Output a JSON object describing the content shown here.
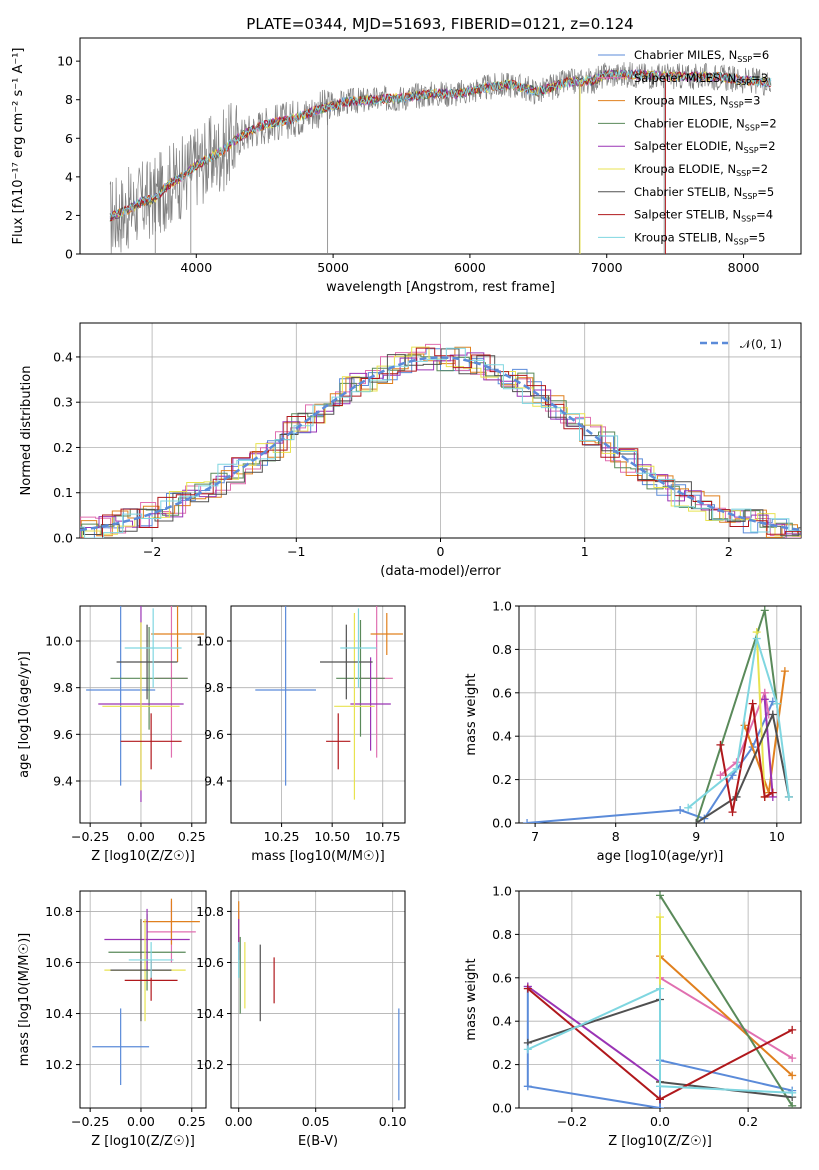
{
  "figure_title": "PLATE=0344, MJD=51693, FIBERID=0121, z=0.124",
  "colors": {
    "data": "#808080",
    "gaussian": "#5b8bd9"
  },
  "chart_data": [
    {
      "id": "spectrum",
      "type": "line",
      "xlabel": "wavelength [Angstrom, rest frame]",
      "ylabel": "Flux [fλ10⁻¹⁷ erg cm⁻² s⁻¹ A⁻¹]",
      "xlim": [
        3150,
        8420
      ],
      "ylim": [
        0,
        11.2
      ],
      "xticks": [
        4000,
        5000,
        6000,
        7000,
        8000
      ],
      "yticks": [
        0,
        2,
        4,
        6,
        8,
        10
      ],
      "grid": false,
      "legend_position": "top-right",
      "anchors": [
        [
          3370,
          1.9
        ],
        [
          3500,
          2.3
        ],
        [
          3600,
          2.7
        ],
        [
          3700,
          2.9
        ],
        [
          3800,
          3.6
        ],
        [
          3900,
          4.0
        ],
        [
          4000,
          4.6
        ],
        [
          4100,
          5.0
        ],
        [
          4200,
          5.4
        ],
        [
          4300,
          6.0
        ],
        [
          4400,
          6.4
        ],
        [
          4500,
          6.7
        ],
        [
          4700,
          7.0
        ],
        [
          4900,
          7.5
        ],
        [
          5100,
          7.9
        ],
        [
          5300,
          8.0
        ],
        [
          5500,
          8.1
        ],
        [
          5700,
          8.3
        ],
        [
          5900,
          8.3
        ],
        [
          6100,
          8.6
        ],
        [
          6300,
          8.8
        ],
        [
          6500,
          8.4
        ],
        [
          6700,
          8.9
        ],
        [
          6900,
          9.0
        ],
        [
          7000,
          9.3
        ],
        [
          7200,
          9.3
        ],
        [
          7500,
          9.2
        ],
        [
          7800,
          9.2
        ],
        [
          8000,
          9.0
        ],
        [
          8200,
          8.9
        ]
      ],
      "series": [
        {
          "name": "Chabrier MILES, N_SSP=6",
          "label_main": "Chabrier MILES, N",
          "label_sub": "SSP",
          "label_tail": "=6",
          "color": "#5b8bd9"
        },
        {
          "name": "Salpeter MILES, N_SSP=3",
          "label_main": "Salpeter MILES, N",
          "label_sub": "SSP",
          "label_tail": "=3",
          "color": "#e06fb0"
        },
        {
          "name": "Kroupa MILES, N_SSP=3",
          "label_main": "Kroupa MILES, N",
          "label_sub": "SSP",
          "label_tail": "=3",
          "color": "#e0801e"
        },
        {
          "name": "Chabrier ELODIE, N_SSP=2",
          "label_main": "Chabrier ELODIE, N",
          "label_sub": "SSP",
          "label_tail": "=2",
          "color": "#5a8a5a"
        },
        {
          "name": "Salpeter ELODIE, N_SSP=2",
          "label_main": "Salpeter ELODIE, N",
          "label_sub": "SSP",
          "label_tail": "=2",
          "color": "#9a34b5"
        },
        {
          "name": "Kroupa ELODIE, N_SSP=2",
          "label_main": "Kroupa ELODIE, N",
          "label_sub": "SSP",
          "label_tail": "=2",
          "color": "#e8e350"
        },
        {
          "name": "Chabrier STELIB, N_SSP=5",
          "label_main": "Chabrier STELIB, N",
          "label_sub": "SSP",
          "label_tail": "=5",
          "color": "#505050"
        },
        {
          "name": "Salpeter STELIB, N_SSP=4",
          "label_main": "Salpeter STELIB, N",
          "label_sub": "SSP",
          "label_tail": "=4",
          "color": "#b0181c"
        },
        {
          "name": "Kroupa STELIB, N_SSP=5",
          "label_main": "Kroupa STELIB, N",
          "label_sub": "SSP",
          "label_tail": "=5",
          "color": "#7fd6e0"
        }
      ]
    },
    {
      "id": "residuals",
      "type": "line",
      "xlabel": "(data-model)/error",
      "ylabel": "Normed distribution",
      "xlim": [
        -2.5,
        2.5
      ],
      "ylim": [
        0,
        0.475
      ],
      "xticks": [
        -2,
        -1,
        0,
        1,
        2
      ],
      "yticks": [
        0.0,
        0.1,
        0.2,
        0.3,
        0.4
      ],
      "grid": true,
      "legend_position": "top-right",
      "legend_label": "𝒩(0, 1)",
      "gaussian": {
        "mean": 0,
        "sigma": 1
      }
    },
    {
      "id": "age-vs-Z",
      "type": "scatter",
      "xlabel": "Z [log10(Z/Z☉)]",
      "ylabel": "age [log10(age/yr)]",
      "xlim": [
        -0.3,
        0.32
      ],
      "ylim": [
        9.22,
        10.15
      ],
      "xticks": [
        -0.25,
        0.0,
        0.25
      ],
      "yticks": [
        9.4,
        9.6,
        9.8,
        10.0
      ],
      "grid": true,
      "points": [
        {
          "x": -0.1,
          "xerr": 0.17,
          "y": 9.79,
          "yerr": 0.41,
          "color": "#5b8bd9"
        },
        {
          "x": 0.15,
          "xerr": 0.08,
          "y": 9.84,
          "yerr": 0.34,
          "color": "#e06fb0"
        },
        {
          "x": 0.18,
          "xerr": 0.13,
          "y": 10.03,
          "yerr": 0.12,
          "color": "#e0801e"
        },
        {
          "x": 0.04,
          "xerr": 0.19,
          "y": 9.84,
          "yerr": 0.22,
          "color": "#5a8a5a"
        },
        {
          "x": 0.0,
          "xerr": 0.21,
          "y": 9.73,
          "yerr": 0.42,
          "color": "#9a34b5"
        },
        {
          "x": 0.0,
          "xerr": 0.19,
          "y": 9.72,
          "yerr": 0.36,
          "color": "#e8e350"
        },
        {
          "x": 0.03,
          "xerr": 0.15,
          "y": 9.91,
          "yerr": 0.16,
          "color": "#505050"
        },
        {
          "x": 0.05,
          "xerr": 0.15,
          "y": 9.57,
          "yerr": 0.12,
          "color": "#b0181c"
        },
        {
          "x": 0.06,
          "xerr": 0.14,
          "y": 9.97,
          "yerr": 0.17,
          "color": "#7fd6e0"
        }
      ]
    },
    {
      "id": "age-vs-mass",
      "type": "scatter",
      "xlabel": "mass [log10(M/M☉)]",
      "ylabel": "",
      "xlim": [
        10.0,
        10.86
      ],
      "ylim": [
        9.22,
        10.15
      ],
      "xticks": [
        10.25,
        10.5,
        10.75
      ],
      "yticks": [
        9.4,
        9.6,
        9.8,
        10.0
      ],
      "grid": true,
      "points": [
        {
          "x": 10.27,
          "xerr": 0.15,
          "y": 9.79,
          "yerr": 0.41,
          "color": "#5b8bd9"
        },
        {
          "x": 10.72,
          "xerr": 0.08,
          "y": 9.84,
          "yerr": 0.34,
          "color": "#e06fb0"
        },
        {
          "x": 10.77,
          "xerr": 0.08,
          "y": 10.03,
          "yerr": 0.09,
          "color": "#e0801e"
        },
        {
          "x": 10.64,
          "xerr": 0.12,
          "y": 9.84,
          "yerr": 0.25,
          "color": "#5a8a5a"
        },
        {
          "x": 10.69,
          "xerr": 0.1,
          "y": 9.73,
          "yerr": 0.2,
          "color": "#9a34b5"
        },
        {
          "x": 10.61,
          "xerr": 0.1,
          "y": 9.72,
          "yerr": 0.4,
          "color": "#e8e350"
        },
        {
          "x": 10.57,
          "xerr": 0.13,
          "y": 9.91,
          "yerr": 0.16,
          "color": "#505050"
        },
        {
          "x": 10.53,
          "xerr": 0.06,
          "y": 9.57,
          "yerr": 0.12,
          "color": "#b0181c"
        },
        {
          "x": 10.63,
          "xerr": 0.09,
          "y": 9.97,
          "yerr": 0.17,
          "color": "#7fd6e0"
        }
      ]
    },
    {
      "id": "weight-vs-age",
      "type": "line",
      "xlabel": "age [log10(age/yr)]",
      "ylabel": "mass weight",
      "xlim": [
        6.8,
        10.3
      ],
      "ylim": [
        0.0,
        1.0
      ],
      "xticks": [
        7,
        8,
        9,
        10
      ],
      "yticks": [
        0.0,
        0.2,
        0.4,
        0.6,
        0.8,
        1.0
      ],
      "grid": true,
      "series": [
        {
          "color": "#5b8bd9",
          "points": [
            [
              6.9,
              0.0
            ],
            [
              8.8,
              0.06
            ],
            [
              9.1,
              0.02
            ],
            [
              9.45,
              0.22
            ],
            [
              9.7,
              0.35
            ],
            [
              9.95,
              0.56
            ]
          ]
        },
        {
          "color": "#e06fb0",
          "points": [
            [
              9.3,
              0.22
            ],
            [
              9.5,
              0.28
            ],
            [
              9.85,
              0.6
            ],
            [
              9.9,
              0.5
            ]
          ]
        },
        {
          "color": "#e0801e",
          "points": [
            [
              9.6,
              0.45
            ],
            [
              9.9,
              0.14
            ],
            [
              10.1,
              0.7
            ]
          ]
        },
        {
          "color": "#5a8a5a",
          "points": [
            [
              9.0,
              0.0
            ],
            [
              9.85,
              0.98
            ],
            [
              10.0,
              0.55
            ]
          ]
        },
        {
          "color": "#9a34b5",
          "points": [
            [
              9.85,
              0.57
            ],
            [
              9.95,
              0.12
            ]
          ]
        },
        {
          "color": "#e8e350",
          "points": [
            [
              9.75,
              0.88
            ],
            [
              9.85,
              0.12
            ]
          ]
        },
        {
          "color": "#505050",
          "points": [
            [
              9.0,
              0.0
            ],
            [
              9.5,
              0.12
            ],
            [
              9.95,
              0.5
            ],
            [
              10.15,
              0.12
            ]
          ]
        },
        {
          "color": "#b0181c",
          "points": [
            [
              9.3,
              0.36
            ],
            [
              9.45,
              0.05
            ],
            [
              9.7,
              0.55
            ],
            [
              9.85,
              0.12
            ],
            [
              9.95,
              0.14
            ]
          ]
        },
        {
          "color": "#7fd6e0",
          "points": [
            [
              8.9,
              0.07
            ],
            [
              9.5,
              0.25
            ],
            [
              9.75,
              0.85
            ],
            [
              10.0,
              0.55
            ],
            [
              10.15,
              0.12
            ]
          ]
        }
      ]
    },
    {
      "id": "mass-vs-Z",
      "type": "scatter",
      "xlabel": "Z [log10(Z/Z☉)]",
      "ylabel": "mass [log10(M/M☉)]",
      "xlim": [
        -0.3,
        0.32
      ],
      "ylim": [
        10.03,
        10.88
      ],
      "xticks": [
        -0.25,
        0.0,
        0.25
      ],
      "yticks": [
        10.2,
        10.4,
        10.6,
        10.8
      ],
      "grid": true,
      "points": [
        {
          "x": -0.1,
          "xerr": 0.14,
          "y": 10.27,
          "yerr": 0.15,
          "color": "#5b8bd9"
        },
        {
          "x": 0.15,
          "xerr": 0.12,
          "y": 10.72,
          "yerr": 0.12,
          "color": "#e06fb0"
        },
        {
          "x": 0.15,
          "xerr": 0.14,
          "y": 10.76,
          "yerr": 0.09,
          "color": "#e0801e"
        },
        {
          "x": 0.03,
          "xerr": 0.19,
          "y": 10.64,
          "yerr": 0.15,
          "color": "#5a8a5a"
        },
        {
          "x": 0.03,
          "xerr": 0.21,
          "y": 10.69,
          "yerr": 0.12,
          "color": "#9a34b5"
        },
        {
          "x": 0.02,
          "xerr": 0.2,
          "y": 10.57,
          "yerr": 0.2,
          "color": "#e8e350"
        },
        {
          "x": 0.0,
          "xerr": 0.15,
          "y": 10.57,
          "yerr": 0.2,
          "color": "#505050"
        },
        {
          "x": 0.05,
          "xerr": 0.13,
          "y": 10.53,
          "yerr": 0.08,
          "color": "#b0181c"
        },
        {
          "x": 0.05,
          "xerr": 0.11,
          "y": 10.61,
          "yerr": 0.07,
          "color": "#7fd6e0"
        }
      ]
    },
    {
      "id": "mass-vs-EBV",
      "type": "scatter",
      "xlabel": "E(B-V)",
      "ylabel": "",
      "xlim": [
        -0.005,
        0.108
      ],
      "ylim": [
        10.03,
        10.88
      ],
      "xticks": [
        0.0,
        0.05,
        0.1
      ],
      "yticks": [
        10.2,
        10.4,
        10.6,
        10.8
      ],
      "grid": true,
      "points": [
        {
          "x": 0.104,
          "y": 10.24,
          "yerr": 0.18,
          "color": "#5b8bd9"
        },
        {
          "x": 0.0,
          "y": 10.72,
          "yerr": 0.08,
          "color": "#e06fb0"
        },
        {
          "x": 0.0,
          "y": 10.76,
          "yerr": 0.08,
          "color": "#e0801e"
        },
        {
          "x": 0.001,
          "y": 10.55,
          "yerr": 0.15,
          "color": "#5a8a5a"
        },
        {
          "x": 0.0,
          "y": 10.69,
          "yerr": 0.08,
          "color": "#9a34b5"
        },
        {
          "x": 0.004,
          "y": 10.55,
          "yerr": 0.13,
          "color": "#e8e350"
        },
        {
          "x": 0.014,
          "y": 10.52,
          "yerr": 0.15,
          "color": "#505050"
        },
        {
          "x": 0.023,
          "y": 10.53,
          "yerr": 0.09,
          "color": "#b0181c"
        },
        {
          "x": 0.0,
          "y": 10.61,
          "yerr": 0.07,
          "color": "#7fd6e0"
        }
      ]
    },
    {
      "id": "weight-vs-Z",
      "type": "line",
      "xlabel": "Z [log10(Z/Z☉)]",
      "ylabel": "mass weight",
      "xlim": [
        -0.32,
        0.32
      ],
      "ylim": [
        0.0,
        1.0
      ],
      "xticks": [
        -0.2,
        0.0,
        0.2
      ],
      "yticks": [
        0.0,
        0.2,
        0.4,
        0.6,
        0.8,
        1.0
      ],
      "grid": true,
      "series": [
        {
          "color": "#5b8bd9",
          "points": [
            [
              -0.3,
              0.56
            ],
            [
              -0.3,
              0.1
            ],
            [
              0.0,
              0.0
            ],
            [
              0.0,
              0.22
            ],
            [
              0.3,
              0.08
            ]
          ]
        },
        {
          "color": "#e06fb0",
          "points": [
            [
              0.0,
              0.6
            ],
            [
              0.3,
              0.23
            ]
          ]
        },
        {
          "color": "#e0801e",
          "points": [
            [
              0.0,
              0.7
            ],
            [
              0.3,
              0.15
            ]
          ]
        },
        {
          "color": "#5a8a5a",
          "points": [
            [
              0.0,
              0.98
            ],
            [
              0.3,
              0.01
            ]
          ]
        },
        {
          "color": "#9a34b5",
          "points": [
            [
              -0.3,
              0.56
            ],
            [
              0.0,
              0.12
            ]
          ]
        },
        {
          "color": "#e8e350",
          "points": [
            [
              0.0,
              0.88
            ],
            [
              0.0,
              0.12
            ]
          ]
        },
        {
          "color": "#505050",
          "points": [
            [
              -0.3,
              0.3
            ],
            [
              0.0,
              0.5
            ],
            [
              0.0,
              0.12
            ],
            [
              0.3,
              0.05
            ]
          ]
        },
        {
          "color": "#b0181c",
          "points": [
            [
              -0.3,
              0.55
            ],
            [
              0.0,
              0.04
            ],
            [
              0.3,
              0.36
            ]
          ]
        },
        {
          "color": "#7fd6e0",
          "points": [
            [
              -0.3,
              0.27
            ],
            [
              0.0,
              0.55
            ],
            [
              0.0,
              0.1
            ],
            [
              0.3,
              0.07
            ]
          ]
        }
      ]
    }
  ]
}
